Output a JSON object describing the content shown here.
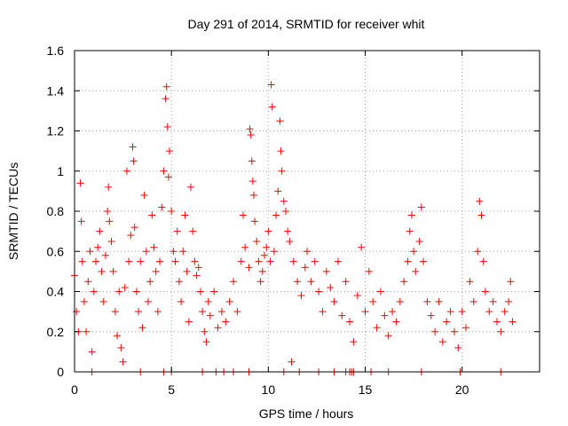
{
  "chart_data": {
    "type": "scatter",
    "title": "Day 291 of 2014, SRMTID for receiver whit",
    "xlabel": "GPS time / hours",
    "ylabel": "SRMTID / TECUs",
    "xlim": [
      0,
      24
    ],
    "ylim": [
      0,
      1.6
    ],
    "x_ticks": [
      0,
      5,
      10,
      15,
      20
    ],
    "x_tick_labels": [
      "0",
      "5",
      "10",
      "15",
      "20"
    ],
    "y_ticks": [
      0,
      0.2,
      0.4,
      0.6,
      0.8,
      1,
      1.2,
      1.4,
      1.6
    ],
    "y_tick_labels": [
      "0",
      "0.2",
      "0.4",
      "0.6",
      "0.8",
      "1",
      "1.2",
      "1.4",
      "1.6"
    ],
    "grid": true,
    "marker": "+",
    "color": "#ff0000",
    "series": [
      {
        "name": "SRMTID",
        "points": [
          [
            0.0,
            0.48
          ],
          [
            0.1,
            0.3
          ],
          [
            0.2,
            0.2
          ],
          [
            0.3,
            0.94
          ],
          [
            0.35,
            0.75
          ],
          [
            0.4,
            0.55
          ],
          [
            0.5,
            0.35
          ],
          [
            0.6,
            0.2
          ],
          [
            0.7,
            0.45
          ],
          [
            0.8,
            0.6
          ],
          [
            0.9,
            0.1
          ],
          [
            1.0,
            0.4
          ],
          [
            1.1,
            0.55
          ],
          [
            1.2,
            0.62
          ],
          [
            1.3,
            0.7
          ],
          [
            1.4,
            0.5
          ],
          [
            1.5,
            0.35
          ],
          [
            1.6,
            0.58
          ],
          [
            1.7,
            0.8
          ],
          [
            1.75,
            0.92
          ],
          [
            1.8,
            0.75
          ],
          [
            1.9,
            0.65
          ],
          [
            2.0,
            0.5
          ],
          [
            2.1,
            0.3
          ],
          [
            2.2,
            0.18
          ],
          [
            2.3,
            0.4
          ],
          [
            2.4,
            0.12
          ],
          [
            2.5,
            0.05
          ],
          [
            2.6,
            0.42
          ],
          [
            2.7,
            1.0
          ],
          [
            2.8,
            0.55
          ],
          [
            2.9,
            0.68
          ],
          [
            3.0,
            1.12
          ],
          [
            3.05,
            1.05
          ],
          [
            3.1,
            0.72
          ],
          [
            3.2,
            0.4
          ],
          [
            3.3,
            0.3
          ],
          [
            3.4,
            0.55
          ],
          [
            3.5,
            0.22
          ],
          [
            3.6,
            0.88
          ],
          [
            3.7,
            0.6
          ],
          [
            3.8,
            0.35
          ],
          [
            3.9,
            0.45
          ],
          [
            4.0,
            0.78
          ],
          [
            4.1,
            0.62
          ],
          [
            4.2,
            0.5
          ],
          [
            4.3,
            0.3
          ],
          [
            4.4,
            0.55
          ],
          [
            4.5,
            0.82
          ],
          [
            4.6,
            1.0
          ],
          [
            4.7,
            1.36
          ],
          [
            4.75,
            1.42
          ],
          [
            4.8,
            1.22
          ],
          [
            4.85,
            0.97
          ],
          [
            4.9,
            1.1
          ],
          [
            5.0,
            0.8
          ],
          [
            5.1,
            0.6
          ],
          [
            5.2,
            0.55
          ],
          [
            5.3,
            0.7
          ],
          [
            5.4,
            0.45
          ],
          [
            5.5,
            0.35
          ],
          [
            5.6,
            0.6
          ],
          [
            5.7,
            0.78
          ],
          [
            5.8,
            0.5
          ],
          [
            5.9,
            0.25
          ],
          [
            6.0,
            0.92
          ],
          [
            6.1,
            0.7
          ],
          [
            6.2,
            0.55
          ],
          [
            6.3,
            0.48
          ],
          [
            6.4,
            0.52
          ],
          [
            6.5,
            0.4
          ],
          [
            6.6,
            0.3
          ],
          [
            6.7,
            0.2
          ],
          [
            6.8,
            0.15
          ],
          [
            6.9,
            0.35
          ],
          [
            7.0,
            0.28
          ],
          [
            7.2,
            0.4
          ],
          [
            7.4,
            0.22
          ],
          [
            7.6,
            0.3
          ],
          [
            7.8,
            0.25
          ],
          [
            8.0,
            0.35
          ],
          [
            8.2,
            0.45
          ],
          [
            8.4,
            0.3
          ],
          [
            8.6,
            0.55
          ],
          [
            8.7,
            0.78
          ],
          [
            8.8,
            0.62
          ],
          [
            9.0,
            0.52
          ],
          [
            9.05,
            1.21
          ],
          [
            9.1,
            1.18
          ],
          [
            9.15,
            1.05
          ],
          [
            9.2,
            0.95
          ],
          [
            9.25,
            0.88
          ],
          [
            9.3,
            0.75
          ],
          [
            9.4,
            0.65
          ],
          [
            9.5,
            0.55
          ],
          [
            9.6,
            0.45
          ],
          [
            9.7,
            0.5
          ],
          [
            9.8,
            0.58
          ],
          [
            9.9,
            0.62
          ],
          [
            10.0,
            0.7
          ],
          [
            10.1,
            0.55
          ],
          [
            10.15,
            1.43
          ],
          [
            10.2,
            1.32
          ],
          [
            10.3,
            0.6
          ],
          [
            10.4,
            0.78
          ],
          [
            10.5,
            0.9
          ],
          [
            10.6,
            1.25
          ],
          [
            10.65,
            1.1
          ],
          [
            10.7,
            1.0
          ],
          [
            10.8,
            0.85
          ],
          [
            10.9,
            0.8
          ],
          [
            11.0,
            0.7
          ],
          [
            11.1,
            0.65
          ],
          [
            11.2,
            0.05
          ],
          [
            11.3,
            0.55
          ],
          [
            11.5,
            0.45
          ],
          [
            11.7,
            0.38
          ],
          [
            11.9,
            0.52
          ],
          [
            12.0,
            0.6
          ],
          [
            12.2,
            0.45
          ],
          [
            12.4,
            0.55
          ],
          [
            12.6,
            0.4
          ],
          [
            12.8,
            0.3
          ],
          [
            13.0,
            0.5
          ],
          [
            13.2,
            0.42
          ],
          [
            13.4,
            0.35
          ],
          [
            13.6,
            0.55
          ],
          [
            13.8,
            0.28
          ],
          [
            14.0,
            0.45
          ],
          [
            14.2,
            0.25
          ],
          [
            14.4,
            0.15
          ],
          [
            14.6,
            0.38
          ],
          [
            14.8,
            0.62
          ],
          [
            15.0,
            0.3
          ],
          [
            15.2,
            0.5
          ],
          [
            15.4,
            0.35
          ],
          [
            15.6,
            0.22
          ],
          [
            15.8,
            0.4
          ],
          [
            16.0,
            0.28
          ],
          [
            16.2,
            0.18
          ],
          [
            16.4,
            0.3
          ],
          [
            16.6,
            0.25
          ],
          [
            16.8,
            0.35
          ],
          [
            17.0,
            0.45
          ],
          [
            17.2,
            0.55
          ],
          [
            17.3,
            0.7
          ],
          [
            17.4,
            0.78
          ],
          [
            17.5,
            0.6
          ],
          [
            17.6,
            0.5
          ],
          [
            17.8,
            0.65
          ],
          [
            17.9,
            0.82
          ],
          [
            18.0,
            0.55
          ],
          [
            18.2,
            0.35
          ],
          [
            18.4,
            0.28
          ],
          [
            18.6,
            0.2
          ],
          [
            18.8,
            0.35
          ],
          [
            19.0,
            0.15
          ],
          [
            19.2,
            0.25
          ],
          [
            19.4,
            0.3
          ],
          [
            19.6,
            0.2
          ],
          [
            19.8,
            0.12
          ],
          [
            20.0,
            0.3
          ],
          [
            20.2,
            0.22
          ],
          [
            20.4,
            0.45
          ],
          [
            20.6,
            0.35
          ],
          [
            20.8,
            0.6
          ],
          [
            20.9,
            0.85
          ],
          [
            21.0,
            0.78
          ],
          [
            21.1,
            0.55
          ],
          [
            21.2,
            0.4
          ],
          [
            21.4,
            0.3
          ],
          [
            21.6,
            0.35
          ],
          [
            21.8,
            0.25
          ],
          [
            22.0,
            0.2
          ],
          [
            22.2,
            0.3
          ],
          [
            22.4,
            0.35
          ],
          [
            22.5,
            0.45
          ],
          [
            22.6,
            0.25
          ]
        ]
      }
    ],
    "zero_level_times": [
      0.9,
      3.4,
      4.6,
      5.0,
      6.6,
      7.3,
      7.7,
      8.2,
      9.0,
      10.8,
      11.6,
      12.6,
      13.4,
      14.0,
      14.2,
      14.3,
      14.4,
      15.3,
      16.2,
      17.9,
      19.9,
      22.0
    ]
  }
}
